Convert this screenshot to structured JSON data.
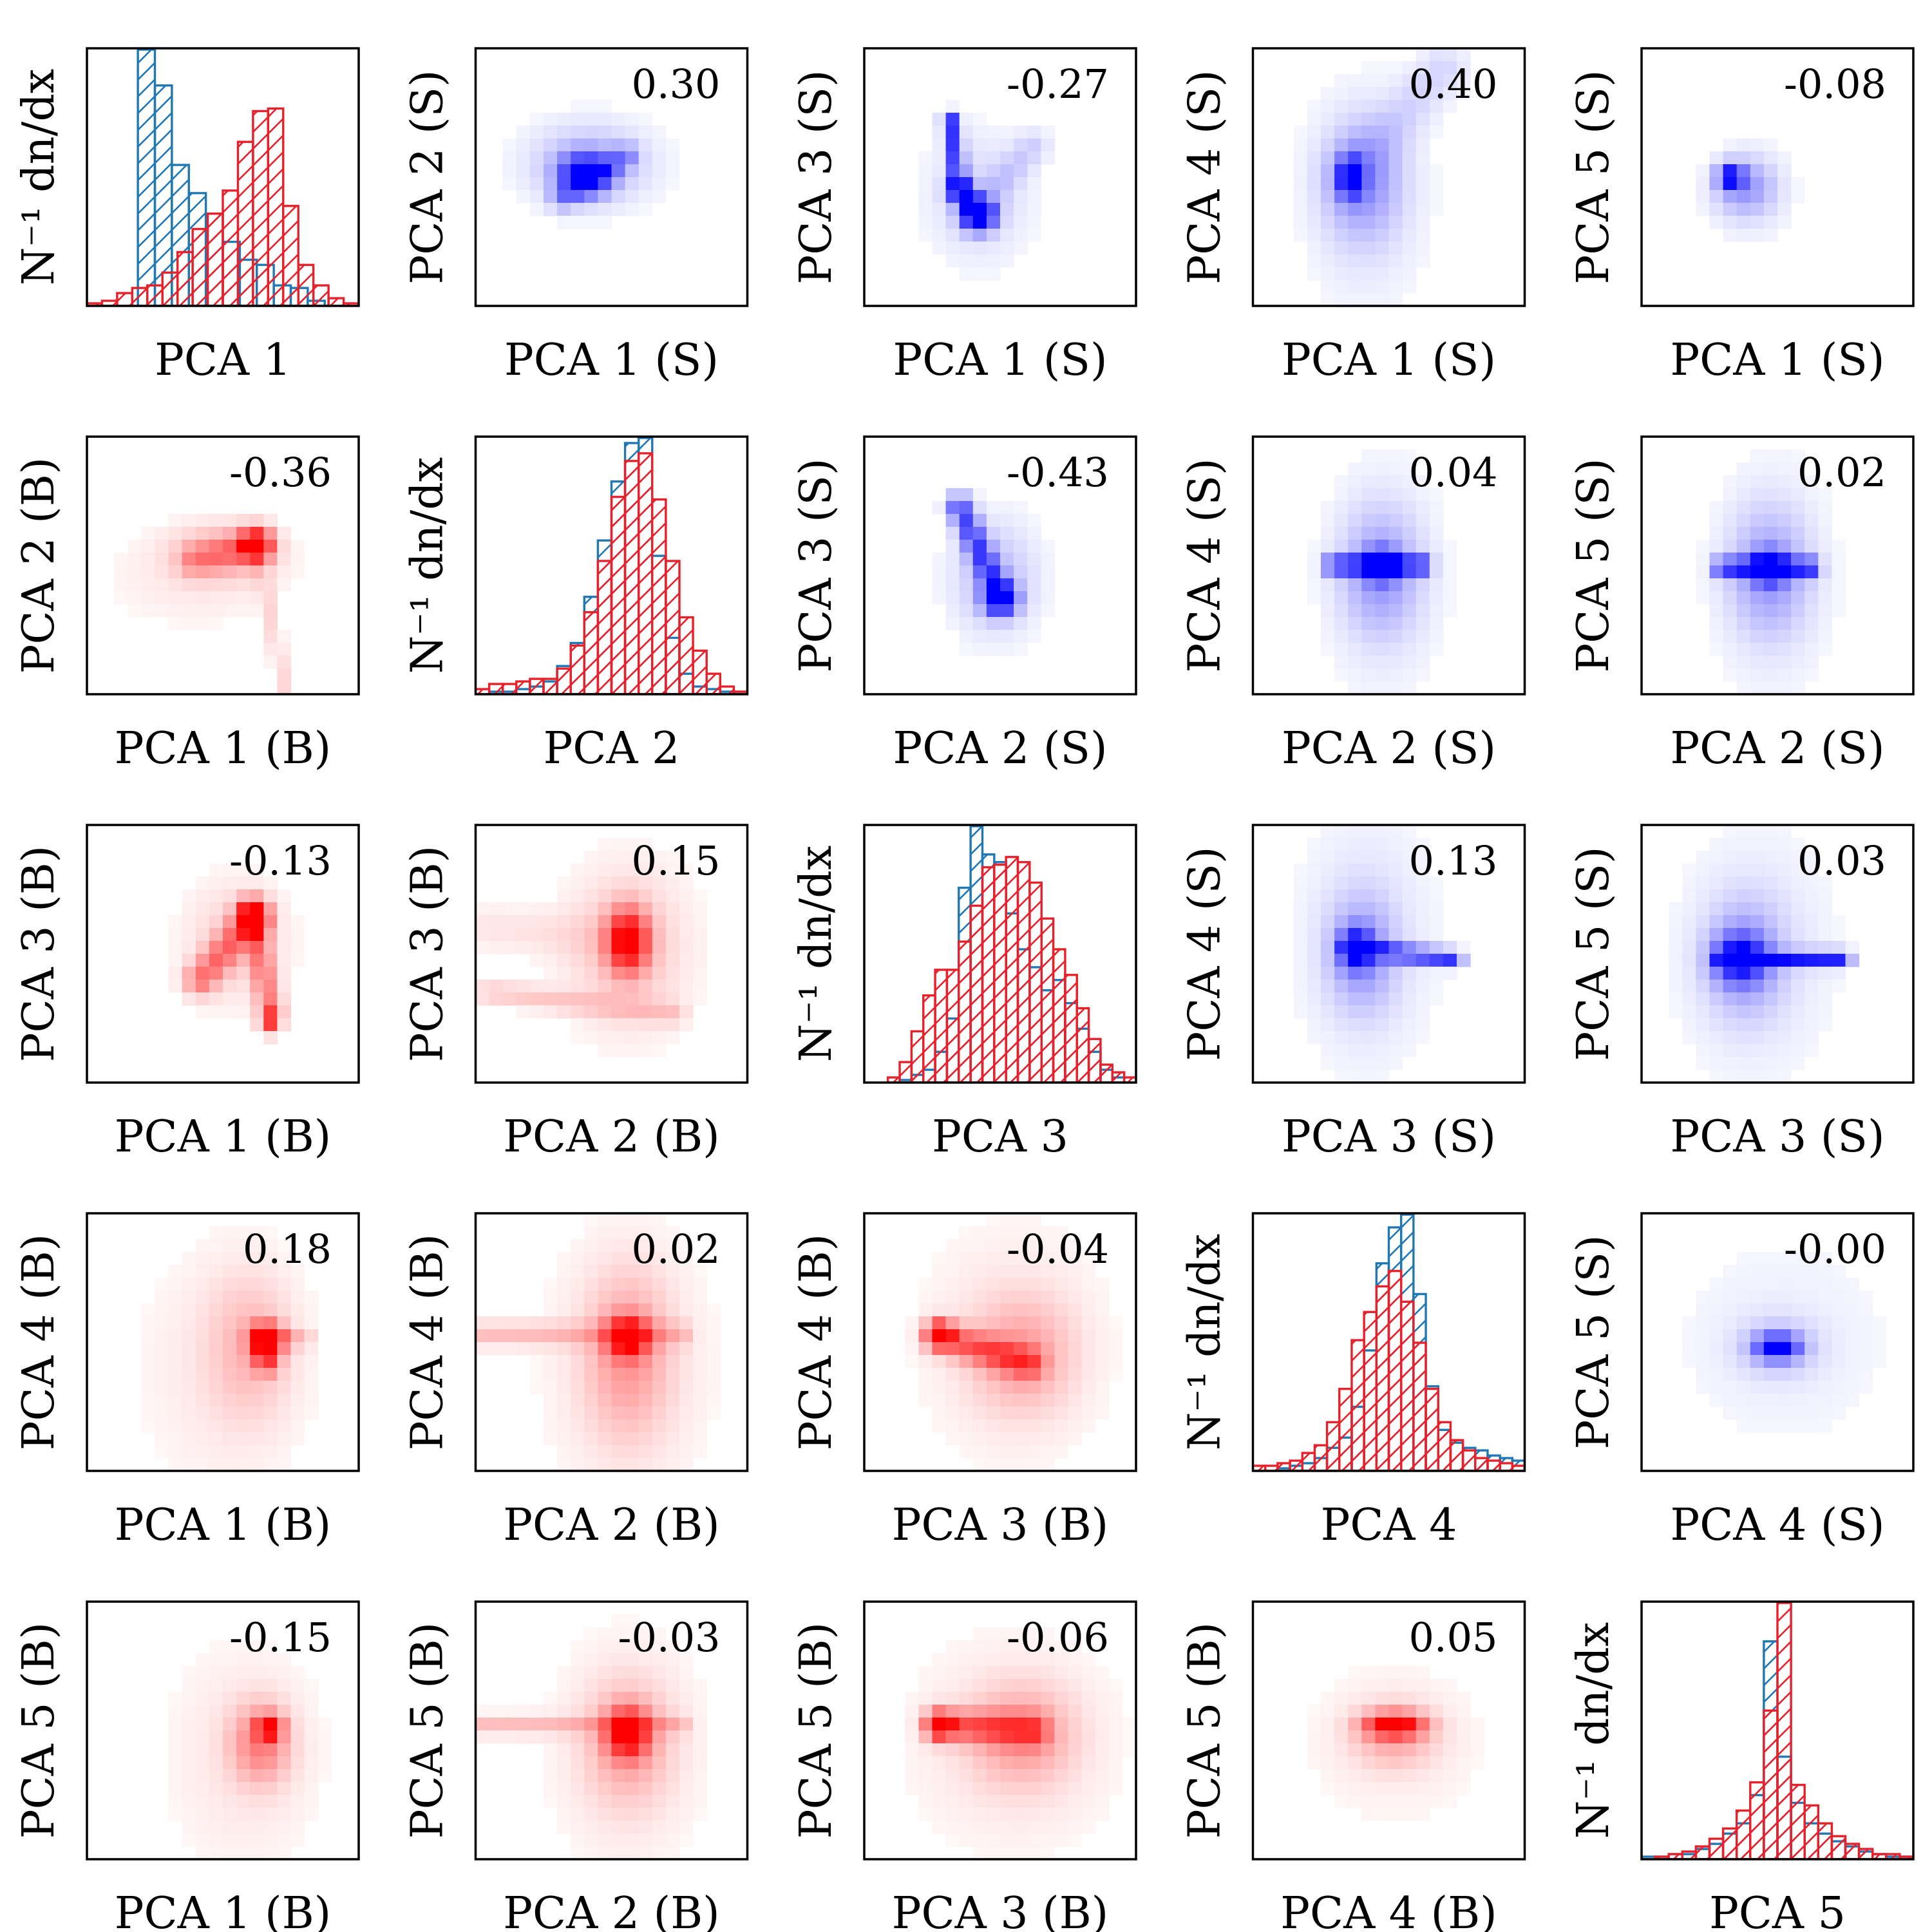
{
  "colors": {
    "signal": "#1f77b4",
    "background": "#e8202a",
    "heat_signal": "#0000ff",
    "heat_background": "#ff0000"
  },
  "chart_data": {
    "type": "corner",
    "n": 5,
    "diag_ylabel": "N⁻¹ dn/dx",
    "diagonal": [
      {
        "xlabel": "PCA 1",
        "signal": [
          0,
          0,
          0,
          1.0,
          0.86,
          0.55,
          0.44,
          0.36,
          0.25,
          0.18,
          0.16,
          0.08,
          0.07,
          0.02,
          0,
          0
        ],
        "background": [
          0.01,
          0.02,
          0.05,
          0.07,
          0.08,
          0.13,
          0.21,
          0.3,
          0.36,
          0.45,
          0.64,
          0.76,
          0.77,
          0.39,
          0.16,
          0.08,
          0.03,
          0.01
        ]
      },
      {
        "xlabel": "PCA 2",
        "signal": [
          0,
          0.01,
          0.01,
          0.02,
          0.03,
          0.05,
          0.11,
          0.2,
          0.38,
          0.6,
          0.83,
          0.98,
          1.0,
          0.54,
          0.22,
          0.08,
          0.03,
          0.02,
          0.01,
          0.01
        ],
        "background": [
          0.02,
          0.04,
          0.04,
          0.05,
          0.06,
          0.06,
          0.1,
          0.19,
          0.32,
          0.52,
          0.77,
          0.91,
          0.94,
          0.76,
          0.52,
          0.3,
          0.17,
          0.08,
          0.03,
          0.01
        ]
      },
      {
        "xlabel": "PCA 3",
        "signal": [
          0,
          0,
          0,
          0.01,
          0.03,
          0.05,
          0.12,
          0.25,
          0.76,
          1.0,
          0.89,
          0.86,
          0.66,
          0.52,
          0.45,
          0.36,
          0.4,
          0.31,
          0.21,
          0.12,
          0.05,
          0.02,
          0
        ],
        "background": [
          0,
          0,
          0.02,
          0.08,
          0.2,
          0.34,
          0.44,
          0.44,
          0.55,
          0.69,
          0.84,
          0.85,
          0.88,
          0.86,
          0.78,
          0.64,
          0.52,
          0.42,
          0.29,
          0.17,
          0.07,
          0.04,
          0.02
        ]
      },
      {
        "xlabel": "PCA 4",
        "signal": [
          0,
          0,
          0.01,
          0.02,
          0.03,
          0.05,
          0.09,
          0.13,
          0.25,
          0.47,
          0.81,
          0.95,
          1.0,
          0.69,
          0.33,
          0.16,
          0.11,
          0.09,
          0.08,
          0.06,
          0.05,
          0.04
        ],
        "background": [
          0.02,
          0.02,
          0.03,
          0.04,
          0.07,
          0.1,
          0.19,
          0.32,
          0.51,
          0.62,
          0.72,
          0.78,
          0.66,
          0.5,
          0.32,
          0.19,
          0.12,
          0.08,
          0.05,
          0.04,
          0.03,
          0.02
        ]
      },
      {
        "xlabel": "PCA 5",
        "signal": [
          0.01,
          0.01,
          0.02,
          0.02,
          0.04,
          0.06,
          0.1,
          0.14,
          0.25,
          0.85,
          0.4,
          0.22,
          0.14,
          0.1,
          0.07,
          0.05,
          0.03,
          0.02,
          0.01,
          0.01
        ],
        "background": [
          0,
          0.01,
          0.02,
          0.03,
          0.05,
          0.08,
          0.12,
          0.19,
          0.3,
          0.58,
          1.0,
          0.29,
          0.21,
          0.14,
          0.09,
          0.06,
          0.04,
          0.02,
          0.02,
          0.01
        ]
      }
    ],
    "upper_signal": [
      {
        "row": 1,
        "col": 2,
        "xlabel": "PCA 1 (S)",
        "ylabel": "PCA 2 (S)",
        "corr": "0.30"
      },
      {
        "row": 1,
        "col": 3,
        "xlabel": "PCA 1 (S)",
        "ylabel": "PCA 3 (S)",
        "corr": "-0.27"
      },
      {
        "row": 1,
        "col": 4,
        "xlabel": "PCA 1 (S)",
        "ylabel": "PCA 4 (S)",
        "corr": "0.40"
      },
      {
        "row": 1,
        "col": 5,
        "xlabel": "PCA 1 (S)",
        "ylabel": "PCA 5 (S)",
        "corr": "-0.08"
      },
      {
        "row": 2,
        "col": 3,
        "xlabel": "PCA 2 (S)",
        "ylabel": "PCA 3 (S)",
        "corr": "-0.43"
      },
      {
        "row": 2,
        "col": 4,
        "xlabel": "PCA 2 (S)",
        "ylabel": "PCA 4 (S)",
        "corr": "0.04"
      },
      {
        "row": 2,
        "col": 5,
        "xlabel": "PCA 2 (S)",
        "ylabel": "PCA 5 (S)",
        "corr": "0.02"
      },
      {
        "row": 3,
        "col": 4,
        "xlabel": "PCA 3 (S)",
        "ylabel": "PCA 4 (S)",
        "corr": "0.13"
      },
      {
        "row": 3,
        "col": 5,
        "xlabel": "PCA 3 (S)",
        "ylabel": "PCA 5 (S)",
        "corr": "0.03"
      },
      {
        "row": 4,
        "col": 5,
        "xlabel": "PCA 4 (S)",
        "ylabel": "PCA 5 (S)",
        "corr": "-0.00"
      }
    ],
    "lower_background": [
      {
        "row": 2,
        "col": 1,
        "xlabel": "PCA 1 (B)",
        "ylabel": "PCA 2 (B)",
        "corr": "-0.36"
      },
      {
        "row": 3,
        "col": 1,
        "xlabel": "PCA 1 (B)",
        "ylabel": "PCA 3 (B)",
        "corr": "-0.13"
      },
      {
        "row": 3,
        "col": 2,
        "xlabel": "PCA 2 (B)",
        "ylabel": "PCA 3 (B)",
        "corr": "0.15"
      },
      {
        "row": 4,
        "col": 1,
        "xlabel": "PCA 1 (B)",
        "ylabel": "PCA 4 (B)",
        "corr": "0.18"
      },
      {
        "row": 4,
        "col": 2,
        "xlabel": "PCA 2 (B)",
        "ylabel": "PCA 4 (B)",
        "corr": "0.02"
      },
      {
        "row": 4,
        "col": 3,
        "xlabel": "PCA 3 (B)",
        "ylabel": "PCA 4 (B)",
        "corr": "-0.04"
      },
      {
        "row": 5,
        "col": 1,
        "xlabel": "PCA 1 (B)",
        "ylabel": "PCA 5 (B)",
        "corr": "-0.15"
      },
      {
        "row": 5,
        "col": 2,
        "xlabel": "PCA 2 (B)",
        "ylabel": "PCA 5 (B)",
        "corr": "-0.03"
      },
      {
        "row": 5,
        "col": 3,
        "xlabel": "PCA 3 (B)",
        "ylabel": "PCA 5 (B)",
        "corr": "-0.06"
      },
      {
        "row": 5,
        "col": 4,
        "xlabel": "PCA 4 (B)",
        "ylabel": "PCA 5 (B)",
        "corr": "0.05"
      }
    ]
  }
}
